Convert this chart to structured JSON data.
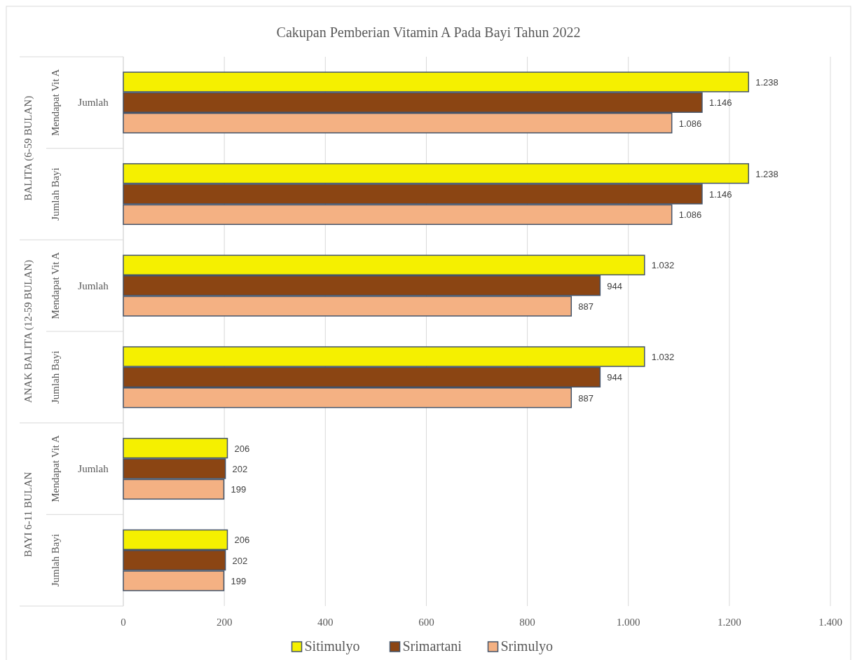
{
  "chart_data": {
    "type": "bar",
    "orientation": "horizontal",
    "title": "Cakupan Pemberian Vitamin A Pada Bayi Tahun 2022",
    "categories": [
      "Mendapat Vit A",
      "Jumlah Bayi",
      "Mendapat Vit A",
      "Jumlah Bayi",
      "Mendapat Vit A",
      "Jumlah Bayi"
    ],
    "annotations": [
      "BALITA (6-59 BULAN)",
      "ANAK BALITA (12-59 BULAN)",
      "BAYI 6-11 BULAN",
      "Jumlah",
      "Jumlah",
      "Jumlah"
    ],
    "series": [
      {
        "name": "Sitimulyo",
        "color": "#f5f000",
        "values": [
          1238,
          1238,
          1032,
          1032,
          206,
          206
        ],
        "value_labels": [
          "1.238",
          "1.238",
          "1.032",
          "1.032",
          "206",
          "206"
        ]
      },
      {
        "name": "Srimartani",
        "color": "#8b4513",
        "values": [
          1146,
          1146,
          944,
          944,
          202,
          202
        ],
        "value_labels": [
          "1.146",
          "1.146",
          "944",
          "944",
          "202",
          "202"
        ]
      },
      {
        "name": "Srimulyo",
        "color": "#f4b183",
        "values": [
          1086,
          1086,
          887,
          887,
          199,
          199
        ],
        "value_labels": [
          "1.086",
          "1.086",
          "887",
          "887",
          "199",
          "199"
        ]
      }
    ],
    "xlim": [
      0,
      1400
    ],
    "xticks": [
      0,
      200,
      400,
      600,
      800,
      {
        "value": 1000,
        "label": "1.000"
      },
      {
        "value": 1200,
        "label": "1.200"
      },
      {
        "value": 1400,
        "label": "1.400"
      }
    ],
    "grid": "x",
    "legend": "bottom"
  }
}
